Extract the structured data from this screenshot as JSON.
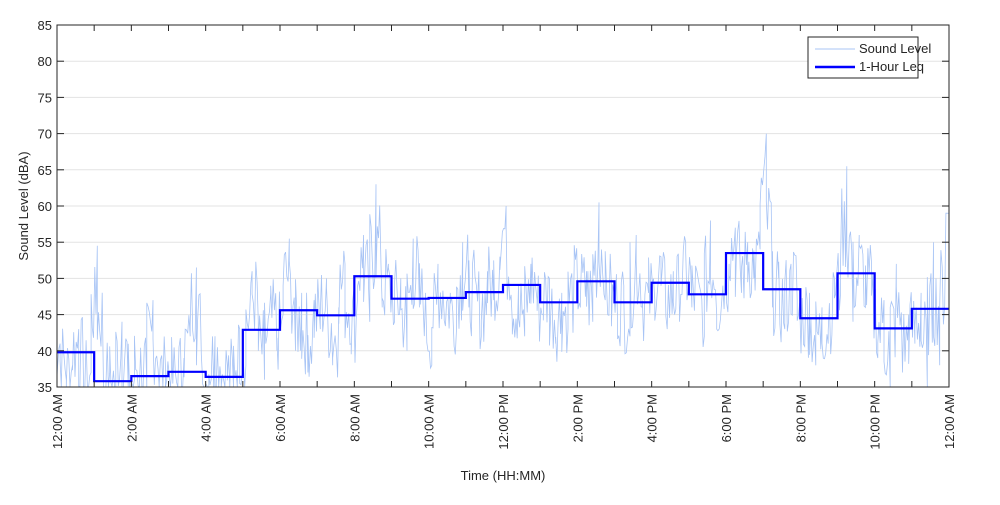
{
  "chart_data": {
    "type": "line",
    "xlabel": "Time (HH:MM)",
    "ylabel": "Sound Level (dBA)",
    "ylim": [
      35,
      85
    ],
    "xlim_hours": [
      0,
      24
    ],
    "yticks": [
      35,
      40,
      45,
      50,
      55,
      60,
      65,
      70,
      75,
      80,
      85
    ],
    "xtick_labels": [
      "12:00 AM",
      "2:00 AM",
      "4:00 AM",
      "6:00 AM",
      "8:00 AM",
      "10:00 AM",
      "12:00 PM",
      "2:00 PM",
      "4:00 PM",
      "6:00 PM",
      "8:00 PM",
      "10:00 PM",
      "12:00 AM"
    ],
    "grid": "horizontal",
    "legend_position": "top-right",
    "series": [
      {
        "name": "Sound Level",
        "color": "#a8c4f5",
        "samples_per_hour": 6,
        "values": [
          41,
          36,
          38,
          43,
          35,
          37,
          54.5,
          35,
          37,
          35,
          44,
          35,
          36,
          40,
          35,
          47,
          35,
          38,
          37,
          35,
          39,
          42,
          51.5,
          36,
          35,
          42,
          36,
          38,
          35,
          43,
          38,
          51,
          44,
          36,
          48,
          40,
          45,
          55.5,
          40,
          48,
          37,
          47,
          43,
          50,
          38,
          46,
          52,
          41,
          47,
          56,
          44,
          63,
          46,
          52,
          44,
          50,
          40,
          55.5,
          46,
          48,
          38,
          52,
          45,
          48,
          43,
          55,
          46,
          50,
          42,
          51,
          47,
          53,
          60,
          44,
          49,
          42,
          52,
          47,
          45,
          50,
          41,
          48,
          43,
          52,
          46,
          51,
          44,
          60.5,
          47,
          49,
          44,
          49,
          42,
          56,
          46,
          48,
          47,
          53,
          43,
          51,
          45,
          55,
          46,
          50,
          42,
          58,
          45,
          49,
          52,
          57,
          48,
          55,
          50,
          54,
          70,
          46,
          50,
          43,
          52,
          47,
          42,
          48,
          38,
          46,
          41,
          50,
          48,
          65.5,
          44,
          56,
          46,
          52,
          39,
          47,
          35,
          52,
          37,
          45,
          41,
          48,
          35,
          55,
          38,
          59
        ]
      },
      {
        "name": "1-Hour Leq",
        "color": "#0000ff",
        "hourly_values": [
          39.8,
          35.8,
          36.5,
          37.1,
          36.4,
          42.9,
          45.6,
          44.9,
          50.3,
          47.2,
          47.3,
          48.1,
          49.1,
          46.7,
          49.6,
          46.7,
          49.4,
          47.8,
          53.5,
          48.5,
          44.5,
          50.7,
          43.1,
          45.8
        ]
      }
    ]
  }
}
